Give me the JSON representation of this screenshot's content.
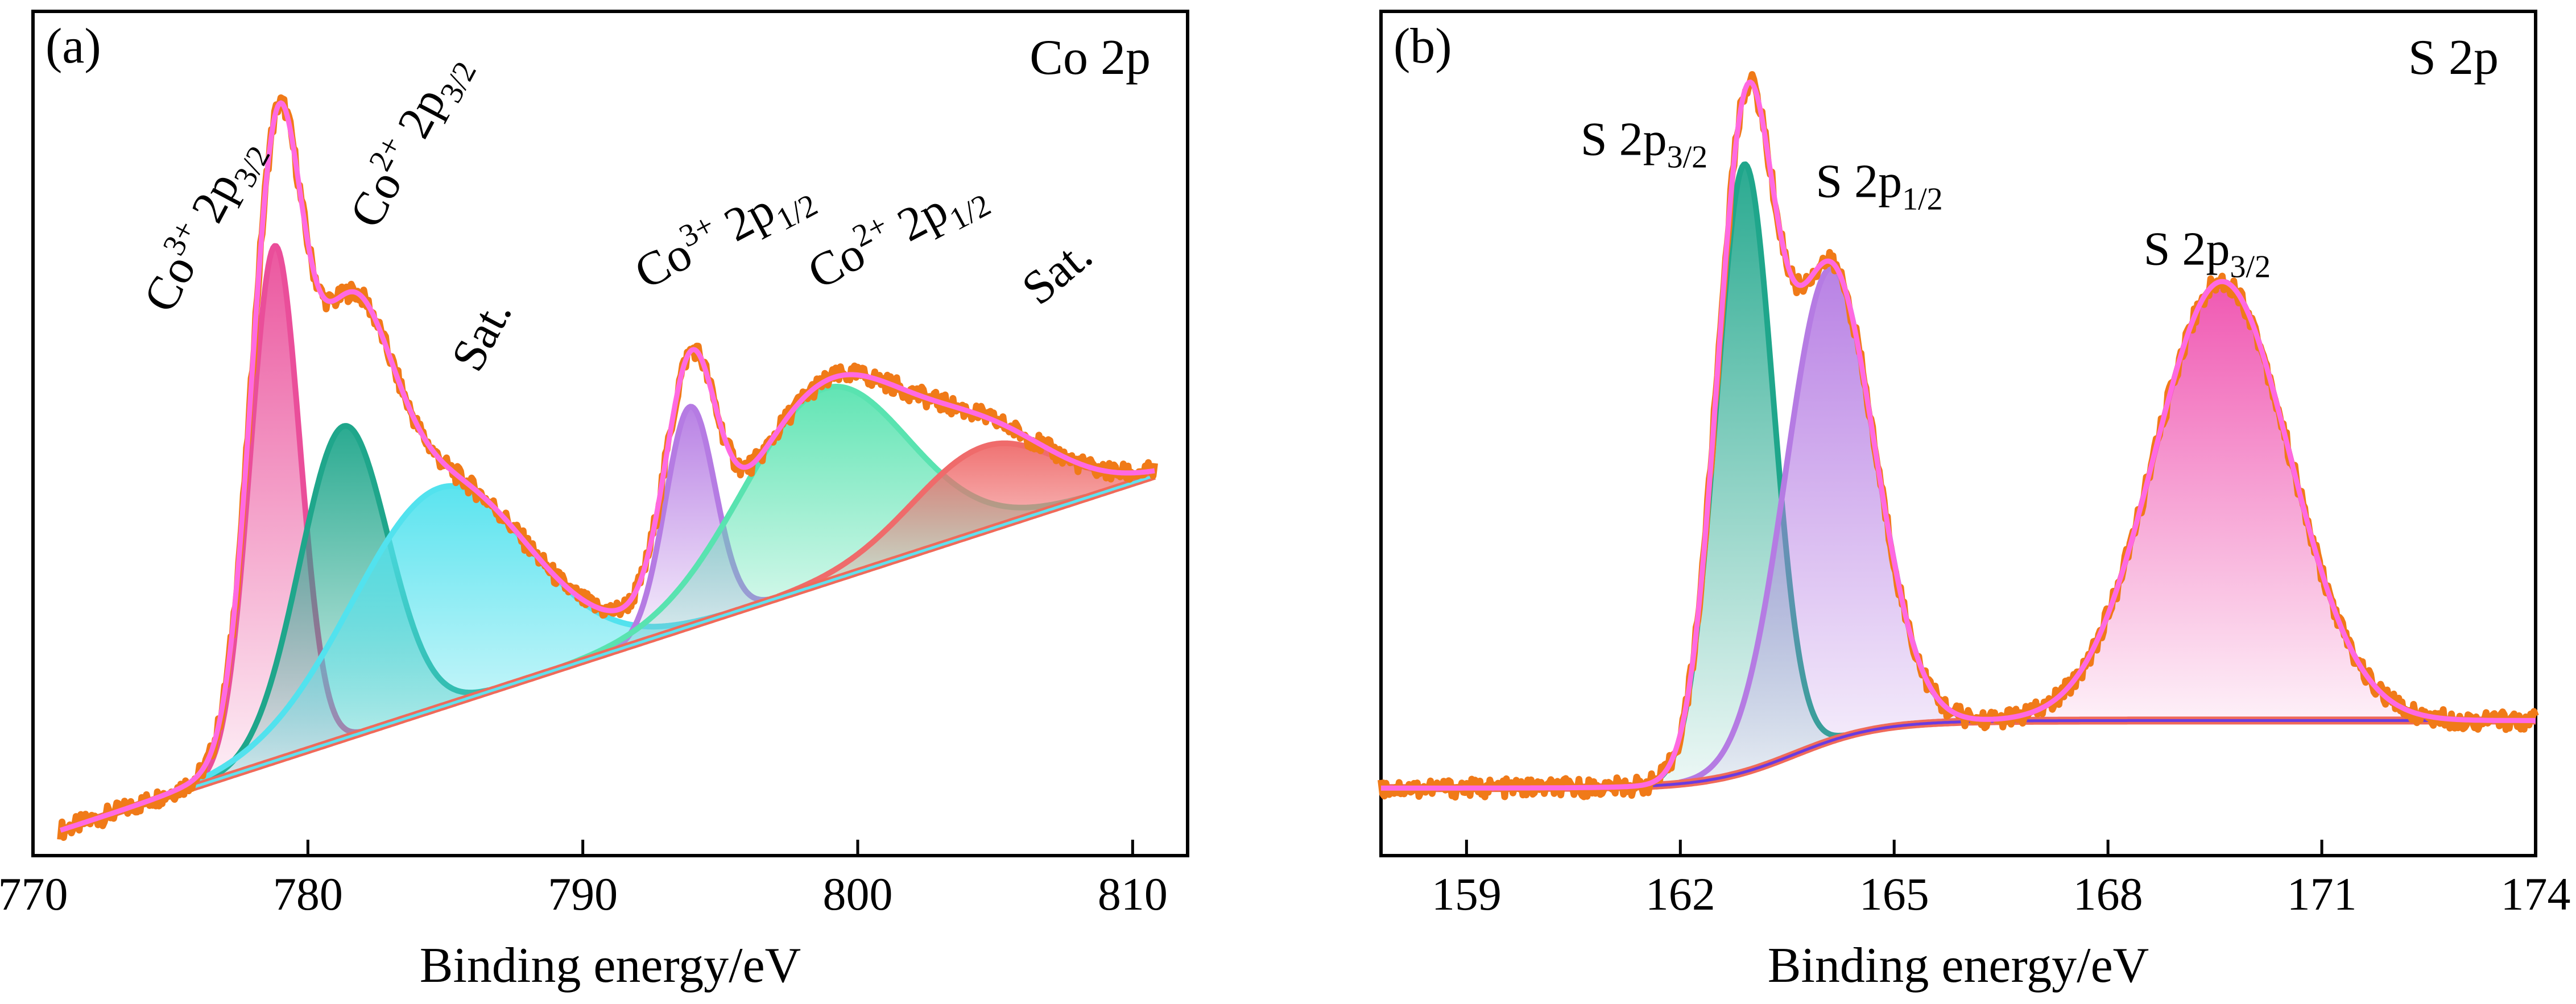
{
  "chart_data": [
    {
      "panel_label": "(a)",
      "type": "line",
      "title": "Co 2p",
      "xlabel": "Binding energy/eV",
      "ylabel": "",
      "xlim": [
        770,
        812
      ],
      "ylim": [
        0,
        100
      ],
      "xticks": [
        770,
        780,
        790,
        800,
        810
      ],
      "y_axis_labels_shown": false,
      "background": {
        "x0": 771,
        "y0": 3,
        "x1": 810.8,
        "y1": 45
      },
      "annotations": [
        {
          "base": "Co",
          "sup": "3+",
          "rest": " 2p",
          "sub": "3/2",
          "x": 775,
          "y": 64,
          "rotation": -62
        },
        {
          "base": "Co",
          "sup": "2+",
          "rest": " 2p",
          "sub": "3/2",
          "x": 782.5,
          "y": 74,
          "rotation": -62
        },
        {
          "base": "Sat.",
          "sup": "",
          "rest": "",
          "sub": "",
          "x": 786.2,
          "y": 57,
          "rotation": -62
        },
        {
          "base": "Co",
          "sup": "3+",
          "rest": " 2p",
          "sub": "1/2",
          "x": 792.3,
          "y": 67,
          "rotation": -28
        },
        {
          "base": "Co",
          "sup": "2+",
          "rest": " 2p",
          "sub": "1/2",
          "x": 798.6,
          "y": 67,
          "rotation": -28
        },
        {
          "base": "Sat.",
          "sup": "",
          "rest": "",
          "sub": "",
          "x": 806.6,
          "y": 65,
          "rotation": -40
        }
      ],
      "components": [
        {
          "name": "Co3+ 2p3/2",
          "center": 778.8,
          "height": 61,
          "width": 0.9,
          "color": "#ea4e9a",
          "fill": true
        },
        {
          "name": "Co2+ 2p3/2",
          "center": 781.3,
          "height": 37,
          "width": 1.6,
          "color": "#1fa68b",
          "fill": true
        },
        {
          "name": "Sat.",
          "center": 784.8,
          "height": 26,
          "width": 3.2,
          "color": "#52e2ee",
          "fill": true
        },
        {
          "name": "Co3+ 2p1/2",
          "center": 793.9,
          "height": 26,
          "width": 0.9,
          "color": "#b57be3",
          "fill": true
        },
        {
          "name": "Co2+ 2p1/2",
          "center": 798.8,
          "height": 23,
          "width": 3.0,
          "color": "#59e3b0",
          "fill": true
        },
        {
          "name": "Sat.",
          "center": 804.6,
          "height": 10,
          "width": 2.6,
          "color": "#ef6b6b",
          "fill": true
        }
      ],
      "series": [
        {
          "role": "measured",
          "color": "#f07a18"
        },
        {
          "role": "envelope",
          "color": "#ff69e2"
        },
        {
          "role": "background",
          "color": "#5fe2f0"
        }
      ]
    },
    {
      "panel_label": "(b)",
      "type": "line",
      "title": "S 2p",
      "xlabel": "Binding energy/eV",
      "ylabel": "",
      "xlim": [
        157.8,
        174.0
      ],
      "ylim": [
        0,
        100
      ],
      "xticks": [
        159,
        162,
        165,
        168,
        171,
        174
      ],
      "y_axis_labels_shown": false,
      "background": {
        "x0": 157.8,
        "y0": 8,
        "x1": 174.0,
        "y1": 16,
        "step_center": 163.6,
        "step_width": 0.6
      },
      "annotations": [
        {
          "base": "S 2p",
          "sup": "",
          "rest": "",
          "sub": "3/2",
          "x": 160.6,
          "y": 83,
          "rotation": 0
        },
        {
          "base": "S 2p",
          "sup": "",
          "rest": "",
          "sub": "1/2",
          "x": 163.9,
          "y": 78,
          "rotation": 0
        },
        {
          "base": "S 2p",
          "sup": "",
          "rest": "",
          "sub": "3/2",
          "x": 168.5,
          "y": 70,
          "rotation": 0
        }
      ],
      "components": [
        {
          "name": "S 2p3/2",
          "center": 162.9,
          "height": 72,
          "width": 0.4,
          "color": "#1fa68b",
          "fill": true
        },
        {
          "name": "S 2p1/2",
          "center": 164.1,
          "height": 56,
          "width": 0.62,
          "color": "#b57be3",
          "fill": true
        },
        {
          "name": "S 2p3/2",
          "center": 169.6,
          "height": 52,
          "width": 0.95,
          "color": "#ef4fae",
          "fill": true
        }
      ],
      "series": [
        {
          "role": "measured",
          "color": "#f07a18"
        },
        {
          "role": "envelope",
          "color": "#ff69e2"
        },
        {
          "role": "background",
          "color": "#6a3be0"
        }
      ]
    }
  ]
}
